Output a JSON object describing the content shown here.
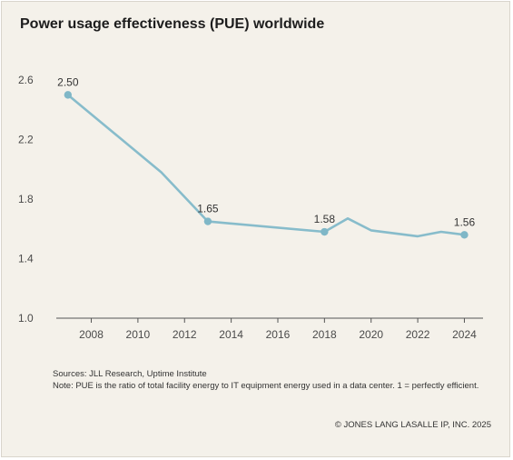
{
  "title": "Power usage effectiveness (PUE) worldwide",
  "notes": {
    "sources": "Sources: JLL Research, Uptime Institute",
    "note": "Note: PUE is the ratio of total facility energy to IT equipment energy used in a data center. 1 = perfectly efficient."
  },
  "copyright": "© JONES LANG LASALLE IP, INC. 2025",
  "colors": {
    "background": "#f4f1ea",
    "line": "#87bccb",
    "marker": "#7fb7c7"
  },
  "chart_data": {
    "type": "line",
    "title": "Power usage effectiveness (PUE) worldwide",
    "xlabel": "",
    "ylabel": "",
    "xlim": [
      2006.5,
      2024.8
    ],
    "ylim": [
      1.0,
      2.6
    ],
    "x_ticks": [
      "2008",
      "2010",
      "2012",
      "2014",
      "2016",
      "2018",
      "2020",
      "2022",
      "2024"
    ],
    "y_ticks": [
      "1.0",
      "1.4",
      "1.8",
      "2.2",
      "2.6"
    ],
    "grid": false,
    "series": [
      {
        "x": [
          2007,
          2011,
          2013,
          2018,
          2019,
          2020,
          2022,
          2023,
          2024
        ],
        "y": [
          2.5,
          1.98,
          1.65,
          1.58,
          1.67,
          1.59,
          1.55,
          1.58,
          1.56
        ]
      }
    ],
    "markers": [
      {
        "x": 2007,
        "y": 2.5,
        "label": "2.50"
      },
      {
        "x": 2013,
        "y": 1.65,
        "label": "1.65"
      },
      {
        "x": 2018,
        "y": 1.58,
        "label": "1.58"
      },
      {
        "x": 2024,
        "y": 1.56,
        "label": "1.56"
      }
    ]
  }
}
